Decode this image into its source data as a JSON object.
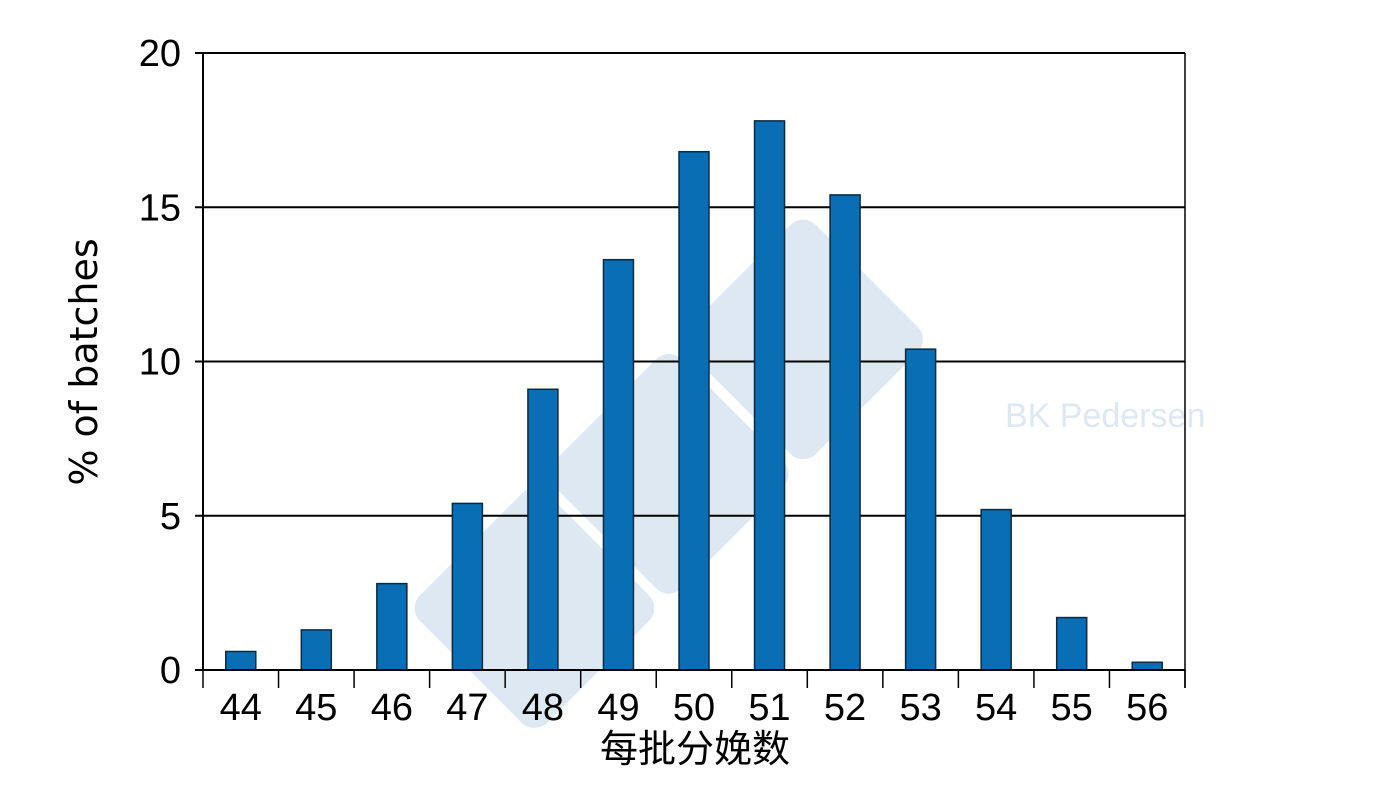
{
  "colors": {
    "bar_fill": "#0a6eb4",
    "bar_stroke": "#0b2a3f",
    "gridline": "#000000",
    "watermark": "#dde8f3"
  },
  "watermark": {
    "text": "BK Pedersen",
    "logo": "333"
  },
  "chart_data": {
    "type": "bar",
    "categories": [
      "44",
      "45",
      "46",
      "47",
      "48",
      "49",
      "50",
      "51",
      "52",
      "53",
      "54",
      "55",
      "56"
    ],
    "values": [
      0.6,
      1.3,
      2.8,
      5.4,
      9.1,
      13.3,
      16.8,
      17.8,
      15.4,
      10.4,
      5.2,
      1.7,
      0.25
    ],
    "xlabel": "每批分娩数",
    "ylabel": "% of batches",
    "ylim": [
      0,
      20
    ],
    "yticks": [
      0,
      5,
      10,
      15,
      20
    ],
    "grid": true,
    "legend": "none"
  }
}
